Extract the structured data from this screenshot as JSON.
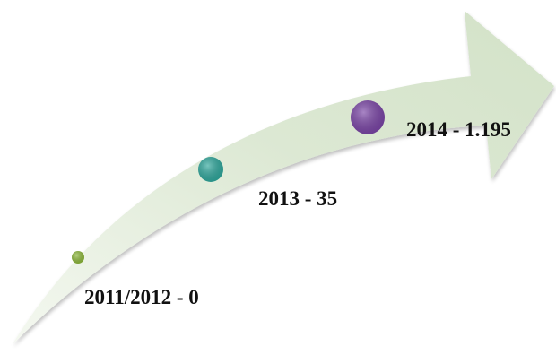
{
  "timeline": {
    "milestones": [
      {
        "label": "2011/2012 - 0",
        "color": "#8db83a"
      },
      {
        "label": "2013 - 35",
        "color": "#2ea79c"
      },
      {
        "label": "2014 - 1.195",
        "color": "#7a44a6"
      }
    ],
    "arrow": {
      "fill": "#dde8d5",
      "fill_light": "#edf3e8",
      "stroke": "#c9d8bf"
    }
  }
}
